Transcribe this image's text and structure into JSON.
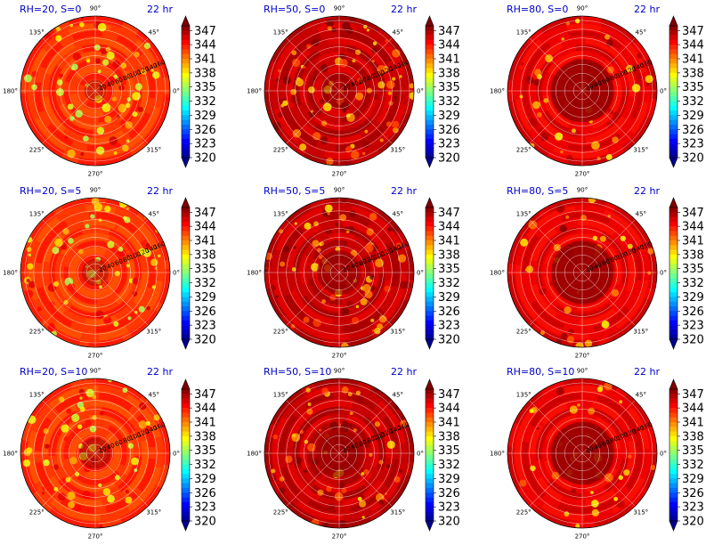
{
  "figure": {
    "time_label": "22 hr"
  },
  "colormap": {
    "name": "jet",
    "stops": [
      "#00008f",
      "#0000ff",
      "#0080ff",
      "#00ffff",
      "#80ff80",
      "#ffff00",
      "#ff8000",
      "#ff0000",
      "#800000"
    ]
  },
  "chart_data": [
    {
      "type": "heatmap",
      "projection": "polar",
      "title": "RH=20, S=0",
      "time": "22 hr",
      "rh": 20,
      "s": 0,
      "field_mean": 343,
      "field_speckle": 0.55,
      "eye_dark": 0.1
    },
    {
      "type": "heatmap",
      "projection": "polar",
      "title": "RH=50, S=0",
      "time": "22 hr",
      "rh": 50,
      "s": 0,
      "field_mean": 346,
      "field_speckle": 0.7,
      "eye_dark": 0.3
    },
    {
      "type": "heatmap",
      "projection": "polar",
      "title": "RH=80, S=0",
      "time": "22 hr",
      "rh": 80,
      "s": 0,
      "field_mean": 345,
      "field_speckle": 0.35,
      "eye_dark": 1.0
    },
    {
      "type": "heatmap",
      "projection": "polar",
      "title": "RH=20, S=5",
      "time": "22 hr",
      "rh": 20,
      "s": 5,
      "field_mean": 343,
      "field_speckle": 0.55,
      "eye_dark": 0.2
    },
    {
      "type": "heatmap",
      "projection": "polar",
      "title": "RH=50, S=5",
      "time": "22 hr",
      "rh": 50,
      "s": 5,
      "field_mean": 346,
      "field_speckle": 0.6,
      "eye_dark": 0.6
    },
    {
      "type": "heatmap",
      "projection": "polar",
      "title": "RH=80, S=5",
      "time": "22 hr",
      "rh": 80,
      "s": 5,
      "field_mean": 345,
      "field_speckle": 0.3,
      "eye_dark": 1.0
    },
    {
      "type": "heatmap",
      "projection": "polar",
      "title": "RH=20, S=10",
      "time": "22 hr",
      "rh": 20,
      "s": 10,
      "field_mean": 343,
      "field_speckle": 0.5,
      "eye_dark": 0.3
    },
    {
      "type": "heatmap",
      "projection": "polar",
      "title": "RH=50, S=10",
      "time": "22 hr",
      "rh": 50,
      "s": 10,
      "field_mean": 346,
      "field_speckle": 0.6,
      "eye_dark": 0.7
    },
    {
      "type": "heatmap",
      "projection": "polar",
      "title": "RH=80, S=10",
      "time": "22 hr",
      "rh": 80,
      "s": 10,
      "field_mean": 345,
      "field_speckle": 0.35,
      "eye_dark": 1.0
    }
  ],
  "axes": {
    "theta_ticks": [
      "0°",
      "45°",
      "90°",
      "135°",
      "180°",
      "225°",
      "270°",
      "315°"
    ],
    "theta_values": [
      0,
      45,
      90,
      135,
      180,
      225,
      270,
      315
    ],
    "r_ticks": [
      "20",
      "40",
      "60",
      "80",
      "100",
      "120",
      "140",
      "160"
    ],
    "r_values": [
      20,
      40,
      60,
      80,
      100,
      120,
      140,
      160
    ],
    "r_max": 170
  },
  "colorbar": {
    "ticks": [
      "347",
      "344",
      "341",
      "338",
      "335",
      "332",
      "329",
      "326",
      "323",
      "320"
    ],
    "values": [
      347,
      344,
      341,
      338,
      335,
      332,
      329,
      326,
      323,
      320
    ],
    "vmin": 320,
    "vmax": 348,
    "extend": "both"
  }
}
